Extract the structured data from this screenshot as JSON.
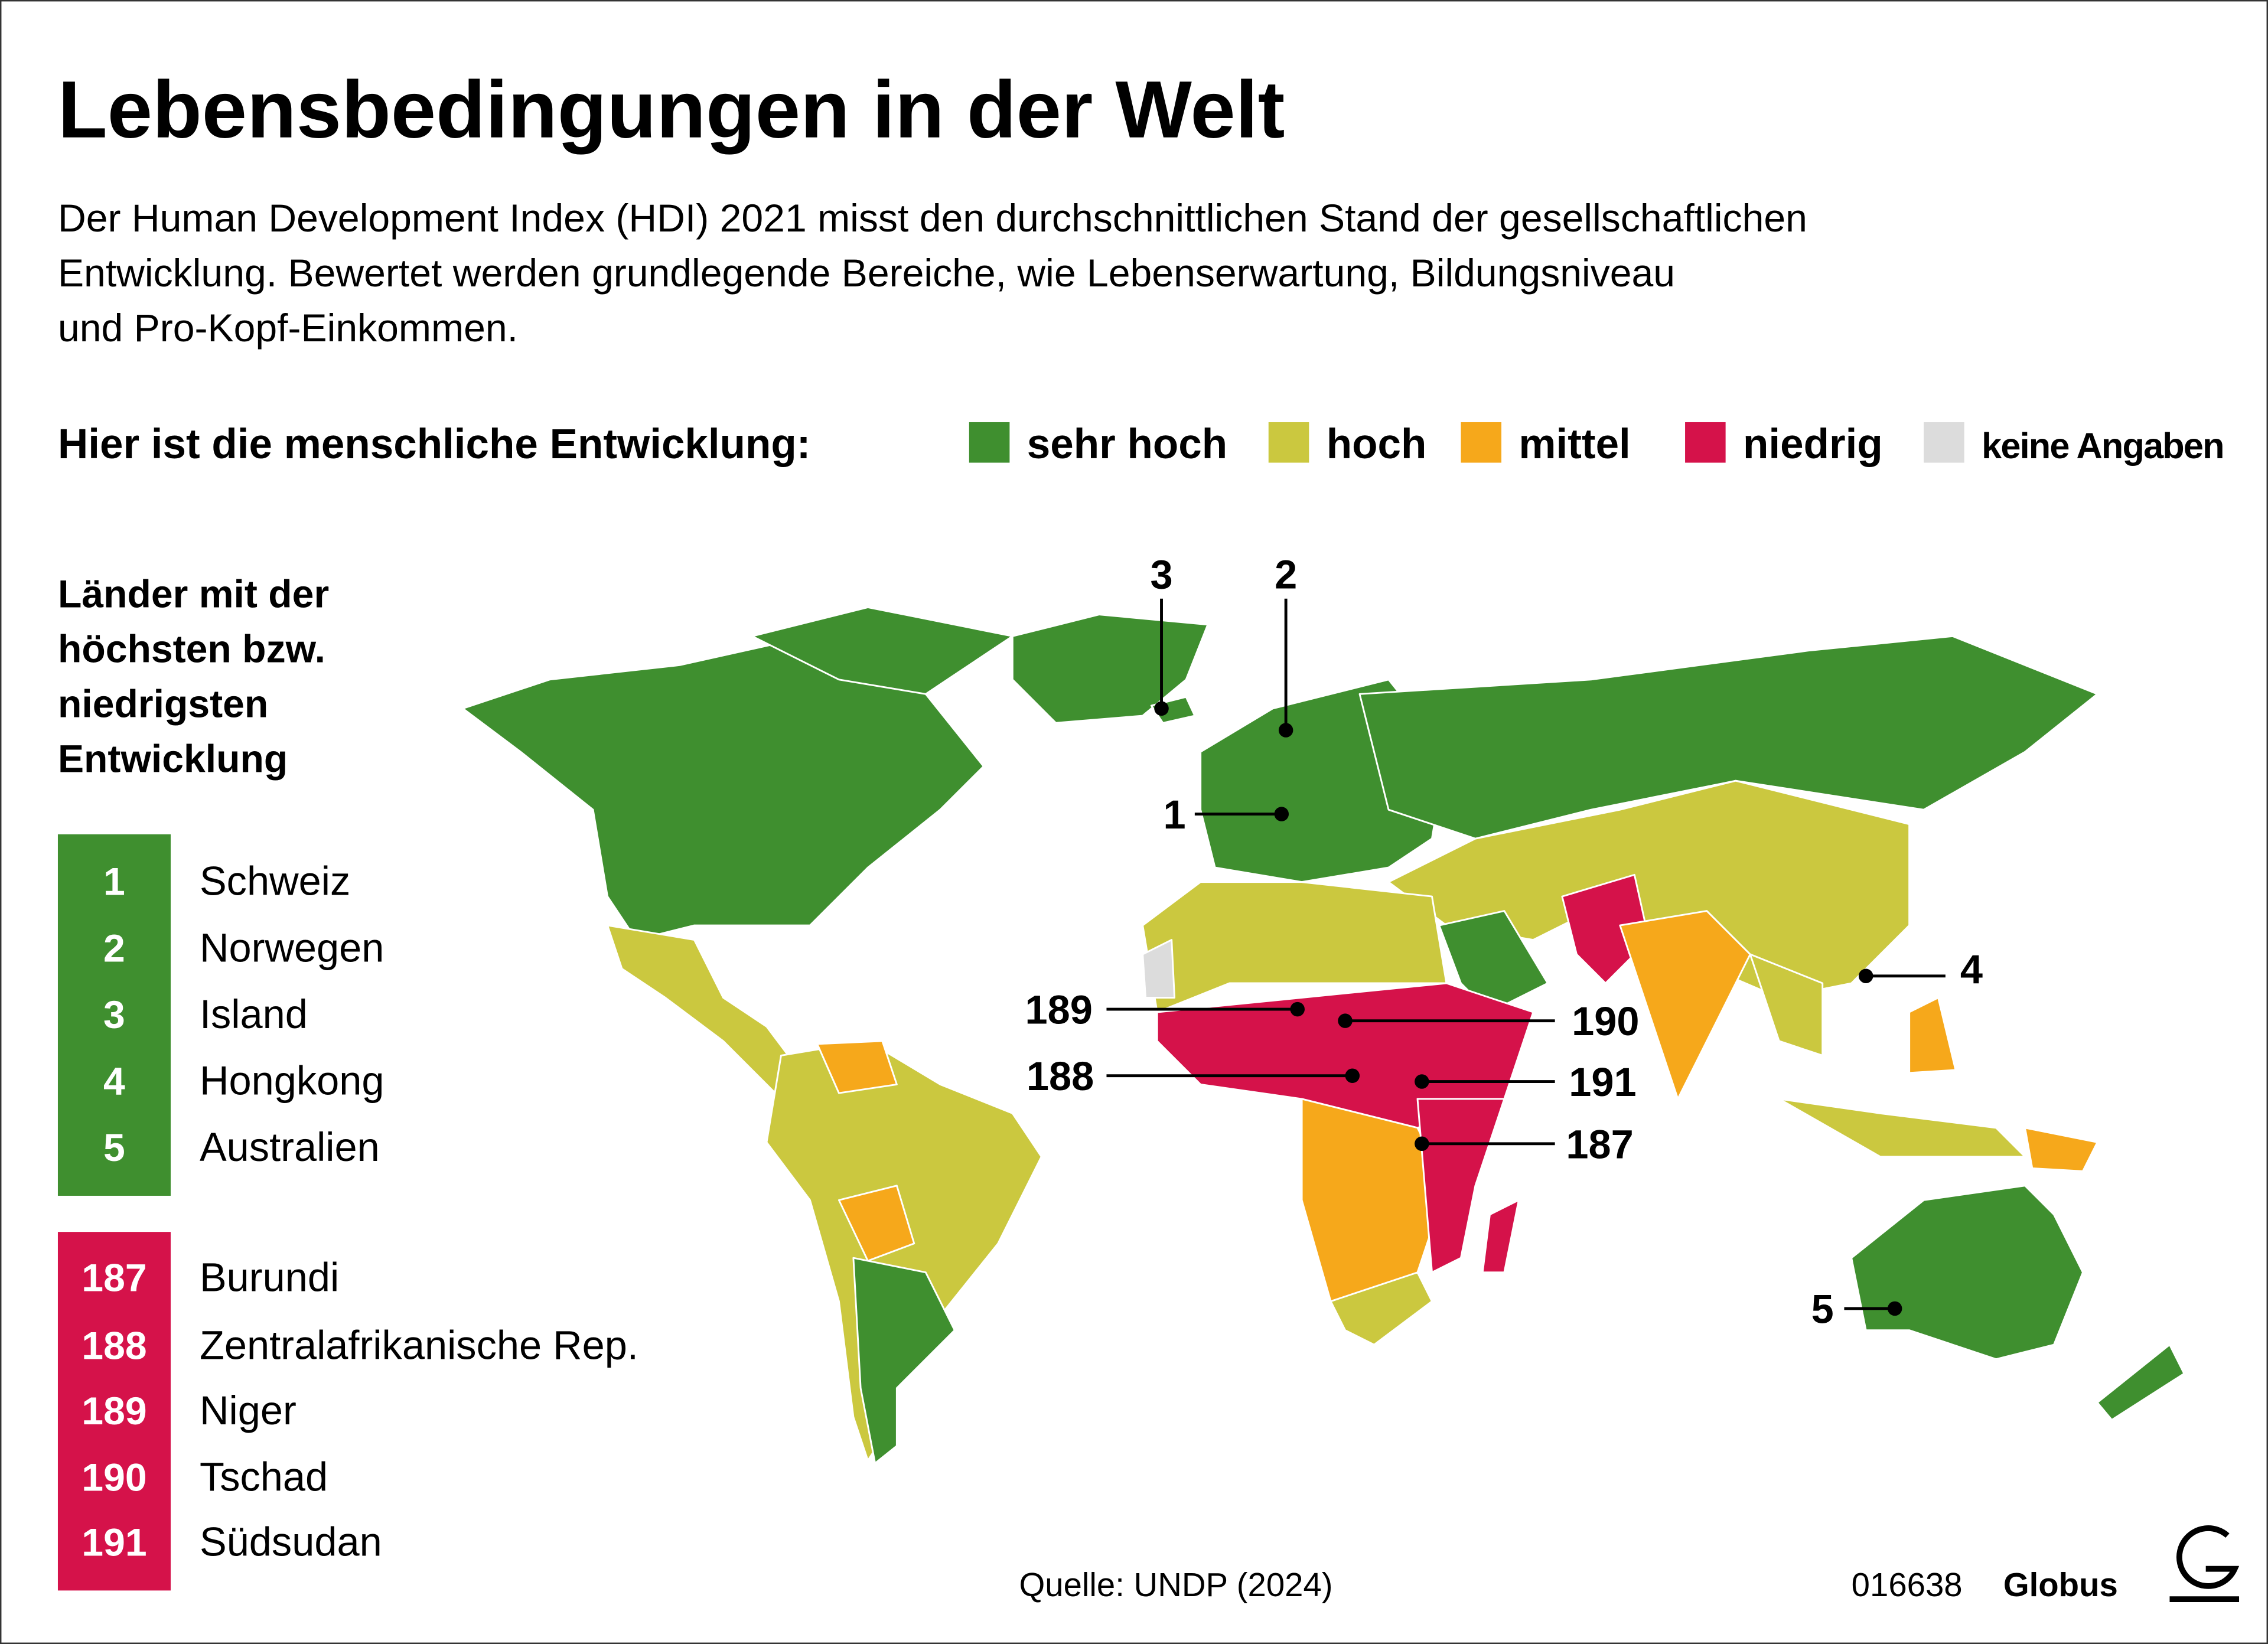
{
  "header": {
    "title": "Lebensbedingungen in der Welt",
    "subtitle": [
      "Der Human Development Index (HDI) 2021 misst den durchschnittlichen Stand der gesellschaftlichen",
      "Entwicklung. Bewertet werden grundlegende Bereiche, wie Lebenserwartung, Bildungsniveau",
      "und Pro-Kopf-Einkommen."
    ]
  },
  "legend": {
    "label": "Hier ist die menschliche Entwicklung:",
    "items": [
      {
        "label": "sehr hoch",
        "color": "#3f8f2f"
      },
      {
        "label": "hoch",
        "color": "#cbc83f"
      },
      {
        "label": "mittel",
        "color": "#f6a81b"
      },
      {
        "label": "niedrig",
        "color": "#d5124a"
      },
      {
        "label": "keine Angaben",
        "color": "#dcdcdc"
      }
    ]
  },
  "ranking": {
    "heading": [
      "Länder mit der",
      "höchsten bzw.",
      "niedrigsten",
      "Entwicklung"
    ],
    "top": [
      {
        "rank": 1,
        "country": "Schweiz"
      },
      {
        "rank": 2,
        "country": "Norwegen"
      },
      {
        "rank": 3,
        "country": "Island"
      },
      {
        "rank": 4,
        "country": "Hongkong"
      },
      {
        "rank": 5,
        "country": "Australien"
      }
    ],
    "bottom": [
      {
        "rank": 187,
        "country": "Burundi"
      },
      {
        "rank": 188,
        "country": "Zentralafrikanische Rep."
      },
      {
        "rank": 189,
        "country": "Niger"
      },
      {
        "rank": 190,
        "country": "Tschad"
      },
      {
        "rank": 191,
        "country": "Südsudan"
      }
    ]
  },
  "map": {
    "callouts": [
      3,
      2,
      1,
      4,
      189,
      190,
      188,
      191,
      187,
      5
    ]
  },
  "source": "Quelle: UNDP (2024)",
  "footer": {
    "code": "016638",
    "brand": "Globus"
  }
}
